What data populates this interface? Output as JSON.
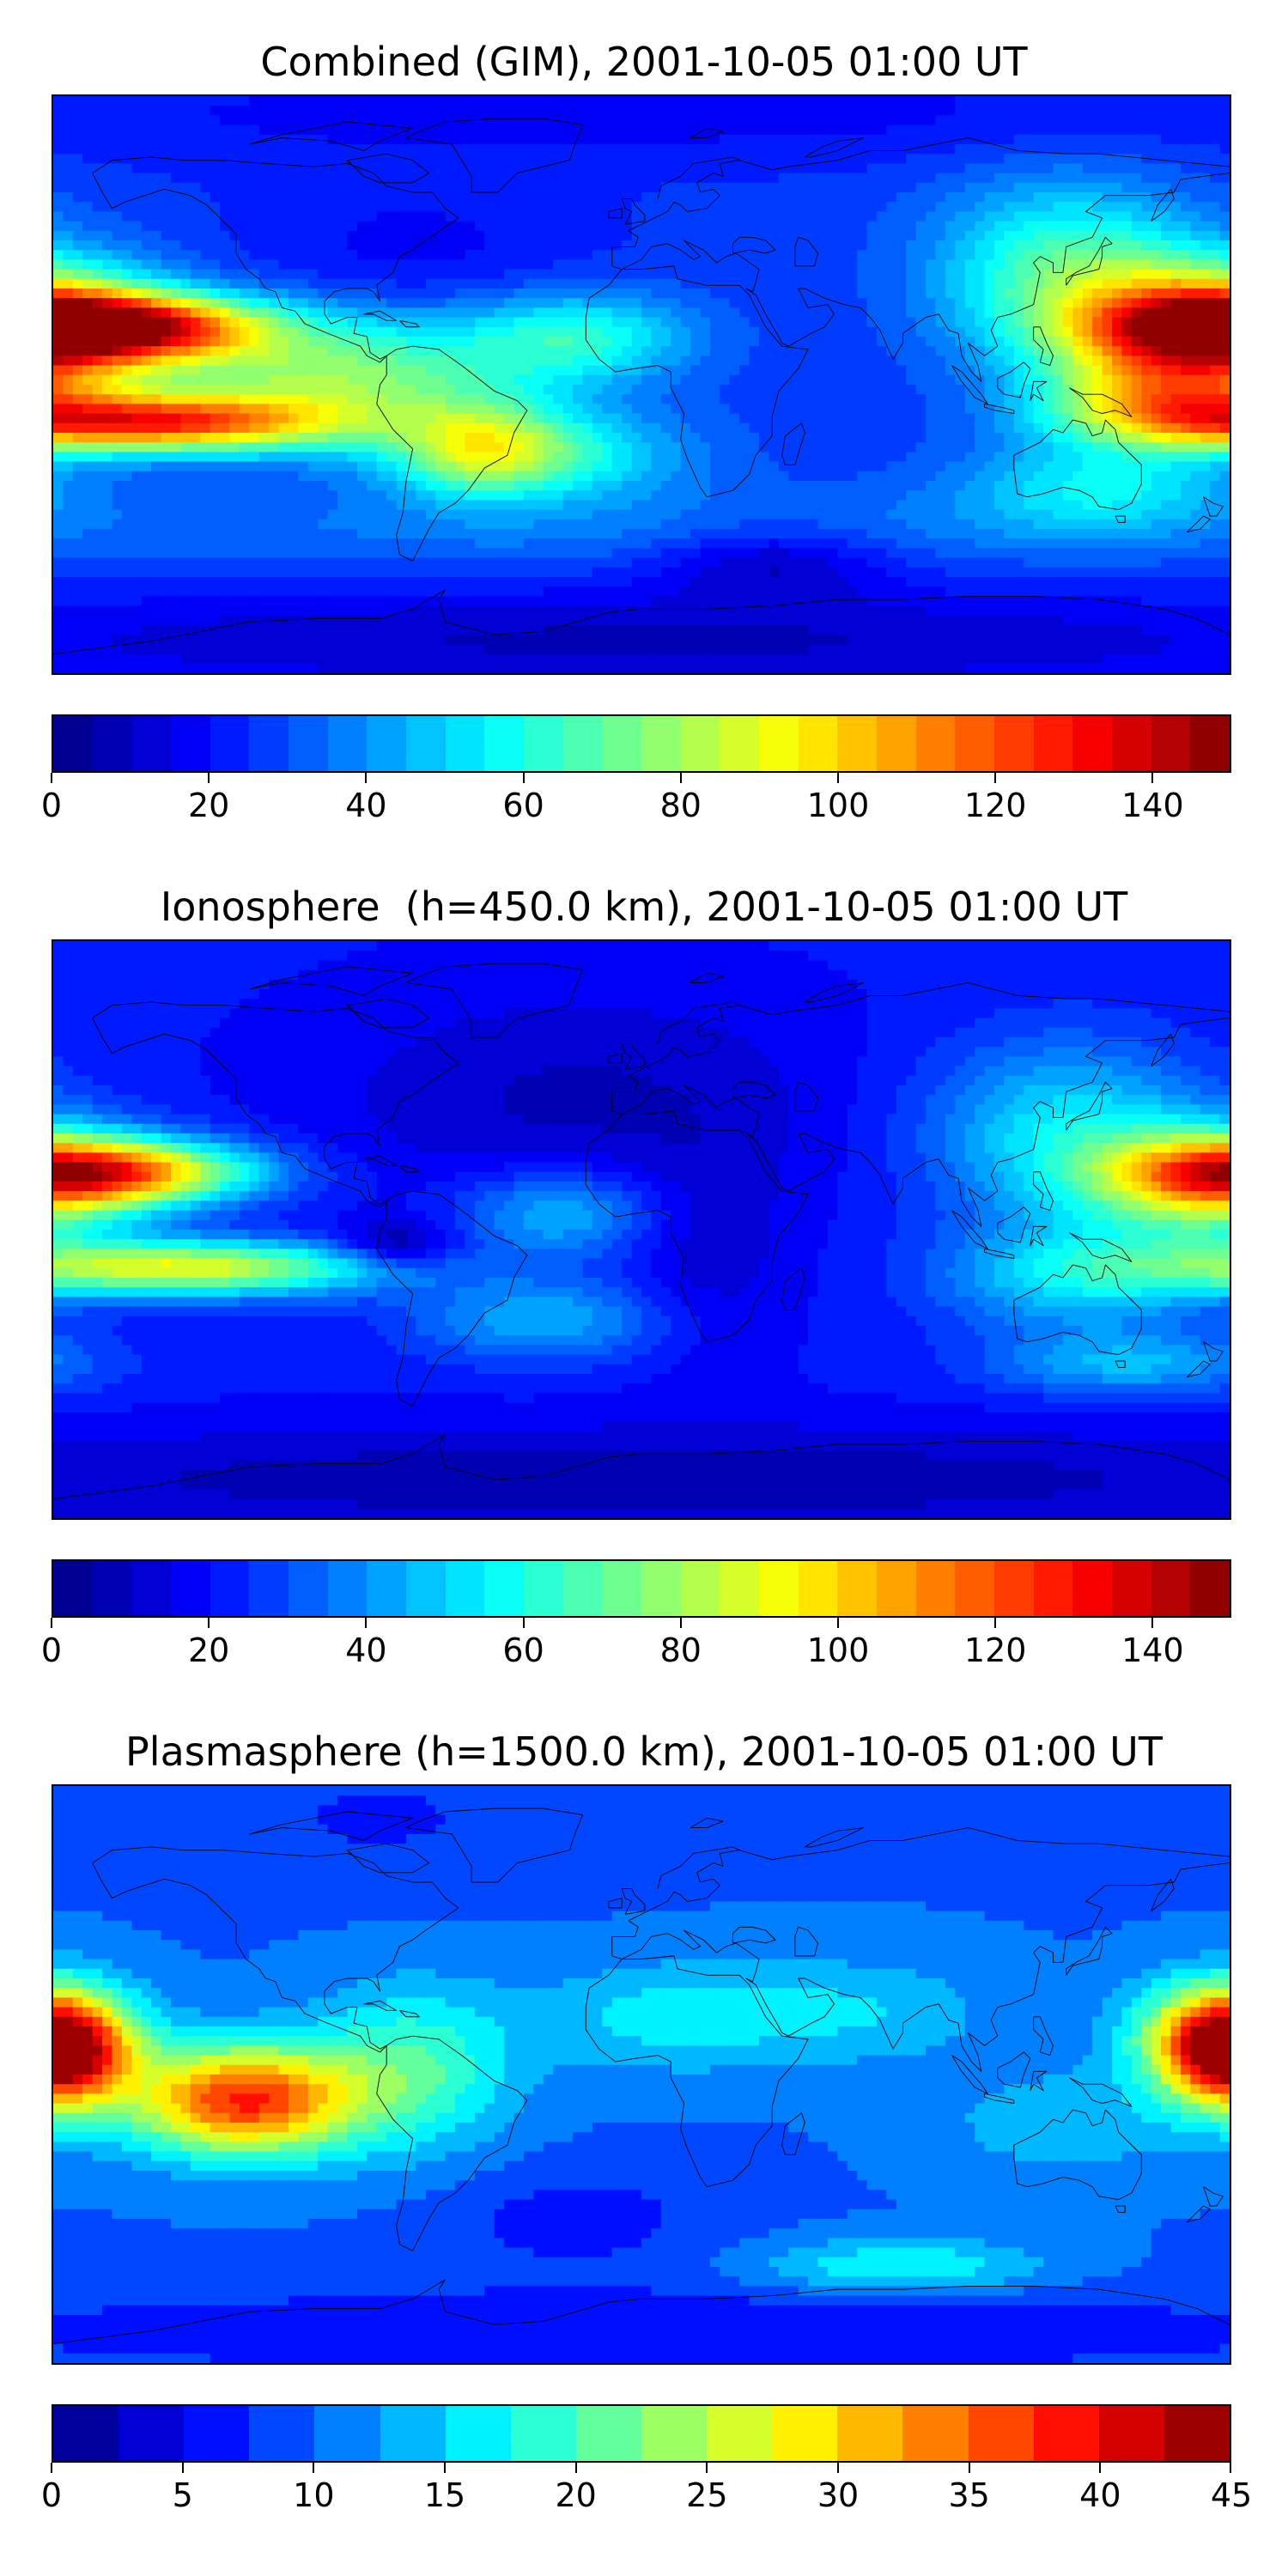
{
  "panels": [
    {
      "title": "Combined (GIM), 2001-10-05 01:00 UT",
      "colorbar": {
        "min": 0,
        "max": 150,
        "levels": 30,
        "ticks": [
          "0",
          "20",
          "40",
          "60",
          "80",
          "100",
          "120",
          "140"
        ]
      },
      "field": {
        "base": 0.18,
        "blobs": [
          {
            "lon": -162,
            "lat": 18,
            "slon": 32,
            "slat": 7,
            "amp": 0.66
          },
          {
            "lon": -150,
            "lat": -12,
            "slon": 38,
            "slat": 6,
            "amp": 0.56
          },
          {
            "lon": -95,
            "lat": 2,
            "slon": 40,
            "slat": 14,
            "amp": 0.34
          },
          {
            "lon": -50,
            "lat": -20,
            "slon": 18,
            "slat": 10,
            "amp": 0.26
          },
          {
            "lon": -20,
            "lat": 15,
            "slon": 25,
            "slat": 10,
            "amp": 0.22
          },
          {
            "lon": -28,
            "lat": -22,
            "slon": 30,
            "slat": 10,
            "amp": 0.2
          },
          {
            "lon": 172,
            "lat": 18,
            "slon": 28,
            "slat": 14,
            "amp": 0.56
          },
          {
            "lon": 160,
            "lat": -5,
            "slon": 26,
            "slat": 10,
            "amp": 0.36
          },
          {
            "lon": 130,
            "lat": 35,
            "slon": 28,
            "slat": 20,
            "amp": 0.26
          },
          {
            "lon": 140,
            "lat": -32,
            "slon": 30,
            "slat": 10,
            "amp": 0.18
          },
          {
            "lon": 0,
            "lat": -45,
            "slon": 180,
            "slat": 9,
            "amp": 0.06
          },
          {
            "lon": -70,
            "lat": 40,
            "slon": 40,
            "slat": 18,
            "amp": -0.06
          },
          {
            "lon": 40,
            "lat": -55,
            "slon": 25,
            "slat": 8,
            "amp": -0.12
          },
          {
            "lon": 0,
            "lat": -80,
            "slon": 180,
            "slat": 12,
            "amp": -0.12
          },
          {
            "lon": 0,
            "lat": 85,
            "slon": 180,
            "slat": 12,
            "amp": -0.06
          }
        ]
      }
    },
    {
      "title": "Ionosphere  (h=450.0 km), 2001-10-05 01:00 UT",
      "colorbar": {
        "min": 0,
        "max": 150,
        "levels": 30,
        "ticks": [
          "0",
          "20",
          "40",
          "60",
          "80",
          "100",
          "120",
          "140"
        ]
      },
      "field": {
        "base": 0.14,
        "blobs": [
          {
            "lon": -160,
            "lat": 18,
            "slon": 30,
            "slat": 7,
            "amp": 0.52
          },
          {
            "lon": -140,
            "lat": -12,
            "slon": 42,
            "slat": 6,
            "amp": 0.46
          },
          {
            "lon": -75,
            "lat": -5,
            "slon": 12,
            "slat": 5,
            "amp": -0.14
          },
          {
            "lon": -25,
            "lat": 5,
            "slon": 22,
            "slat": 10,
            "amp": 0.18
          },
          {
            "lon": -30,
            "lat": -28,
            "slon": 28,
            "slat": 9,
            "amp": 0.16
          },
          {
            "lon": 175,
            "lat": 15,
            "slon": 25,
            "slat": 12,
            "amp": 0.42
          },
          {
            "lon": 130,
            "lat": 30,
            "slon": 30,
            "slat": 20,
            "amp": 0.22
          },
          {
            "lon": 135,
            "lat": -15,
            "slon": 30,
            "slat": 12,
            "amp": 0.2
          },
          {
            "lon": 150,
            "lat": -42,
            "slon": 30,
            "slat": 7,
            "amp": 0.16
          },
          {
            "lon": -20,
            "lat": 40,
            "slon": 55,
            "slat": 25,
            "amp": -0.08
          },
          {
            "lon": 20,
            "lat": -10,
            "slon": 18,
            "slat": 25,
            "amp": -0.06
          },
          {
            "lon": 0,
            "lat": -78,
            "slon": 180,
            "slat": 12,
            "amp": -0.1
          }
        ]
      }
    },
    {
      "title": "Plasmasphere (h=1500.0 km), 2001-10-05 01:00 UT",
      "colorbar": {
        "min": 0,
        "max": 45,
        "levels": 18,
        "ticks": [
          "0",
          "5",
          "10",
          "15",
          "20",
          "25",
          "30",
          "35",
          "40",
          "45"
        ]
      },
      "field": {
        "base": 0.22,
        "blobs": [
          {
            "lon": -122,
            "lat": -8,
            "slon": 24,
            "slat": 12,
            "amp": 0.62
          },
          {
            "lon": -178,
            "lat": 5,
            "slon": 14,
            "slat": 12,
            "amp": 0.5
          },
          {
            "lon": 178,
            "lat": 12,
            "slon": 18,
            "slat": 12,
            "amp": 0.52
          },
          {
            "lon": -70,
            "lat": 2,
            "slon": 22,
            "slat": 18,
            "amp": 0.22
          },
          {
            "lon": 10,
            "lat": 18,
            "slon": 30,
            "slat": 12,
            "amp": 0.14
          },
          {
            "lon": 70,
            "lat": 20,
            "slon": 28,
            "slat": 12,
            "amp": 0.1
          },
          {
            "lon": 130,
            "lat": -15,
            "slon": 28,
            "slat": 12,
            "amp": 0.1
          },
          {
            "lon": 80,
            "lat": -60,
            "slon": 30,
            "slat": 6,
            "amp": 0.18
          },
          {
            "lon": -20,
            "lat": -45,
            "slon": 30,
            "slat": 12,
            "amp": -0.08
          },
          {
            "lon": 0,
            "lat": -80,
            "slon": 180,
            "slat": 10,
            "amp": -0.1
          },
          {
            "lon": -80,
            "lat": 80,
            "slon": 40,
            "slat": 15,
            "amp": -0.06
          }
        ]
      }
    }
  ],
  "colormap": "jet"
}
